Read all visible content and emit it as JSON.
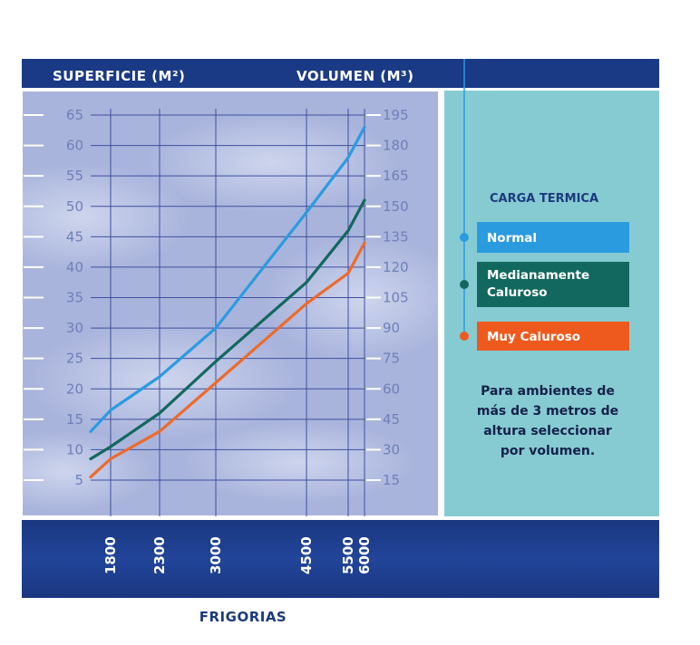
{
  "chart_data": {
    "type": "line",
    "y_left_label": "SUPERFICIE (M²)",
    "y_right_label": "VOLUMEN (M³)",
    "xlabel": "FRIGORIAS",
    "x_ticks": [
      "1800",
      "2300",
      "3000",
      "4500",
      "5500",
      "6000"
    ],
    "y_left_ticks": [
      "65",
      "60",
      "55",
      "50",
      "45",
      "40",
      "35",
      "30",
      "25",
      "20",
      "15",
      "10",
      "5"
    ],
    "y_right_ticks": [
      "195",
      "180",
      "165",
      "150",
      "135",
      "120",
      "105",
      "90",
      "75",
      "60",
      "45",
      "30",
      "15"
    ],
    "y_left_lim": [
      5,
      65
    ],
    "y_right_lim": [
      15,
      195
    ],
    "grid": true,
    "series": [
      {
        "name": "Normal",
        "color": "#2b9be0",
        "points": [
          [
            1500,
            13
          ],
          [
            1800,
            16.5
          ],
          [
            2300,
            22
          ],
          [
            3000,
            30
          ],
          [
            4500,
            49
          ],
          [
            5500,
            58
          ],
          [
            6000,
            63
          ]
        ]
      },
      {
        "name": "Medianamente Caluroso",
        "color": "#12685e",
        "points": [
          [
            1500,
            8.5
          ],
          [
            1800,
            10.5
          ],
          [
            2300,
            16
          ],
          [
            3000,
            24.5
          ],
          [
            4500,
            37.5
          ],
          [
            5500,
            46
          ],
          [
            6000,
            51
          ]
        ]
      },
      {
        "name": "Muy Caluroso",
        "color": "#ee6a2a",
        "points": [
          [
            1500,
            5.5
          ],
          [
            1800,
            8.5
          ],
          [
            2300,
            13
          ],
          [
            3000,
            21
          ],
          [
            4500,
            34
          ],
          [
            5500,
            39
          ],
          [
            6000,
            44
          ]
        ]
      }
    ]
  },
  "legend": {
    "title": "CARGA TERMICA",
    "items": [
      {
        "lines": [
          "Normal"
        ],
        "color": "#2b9be0"
      },
      {
        "lines": [
          "Medianamente",
          "Caluroso"
        ],
        "color": "#12685e"
      },
      {
        "lines": [
          "Muy Caluroso"
        ],
        "color": "#ee5a1e"
      }
    ],
    "note_lines": [
      "Para ambientes de",
      "más de 3 metros de",
      "altura seleccionar",
      "por volumen."
    ]
  },
  "colors": {
    "navy": "#1b3a86",
    "panel": "#86cbd2",
    "plot_bg": "#a9b4dc",
    "grid": "#3d4fa0"
  }
}
